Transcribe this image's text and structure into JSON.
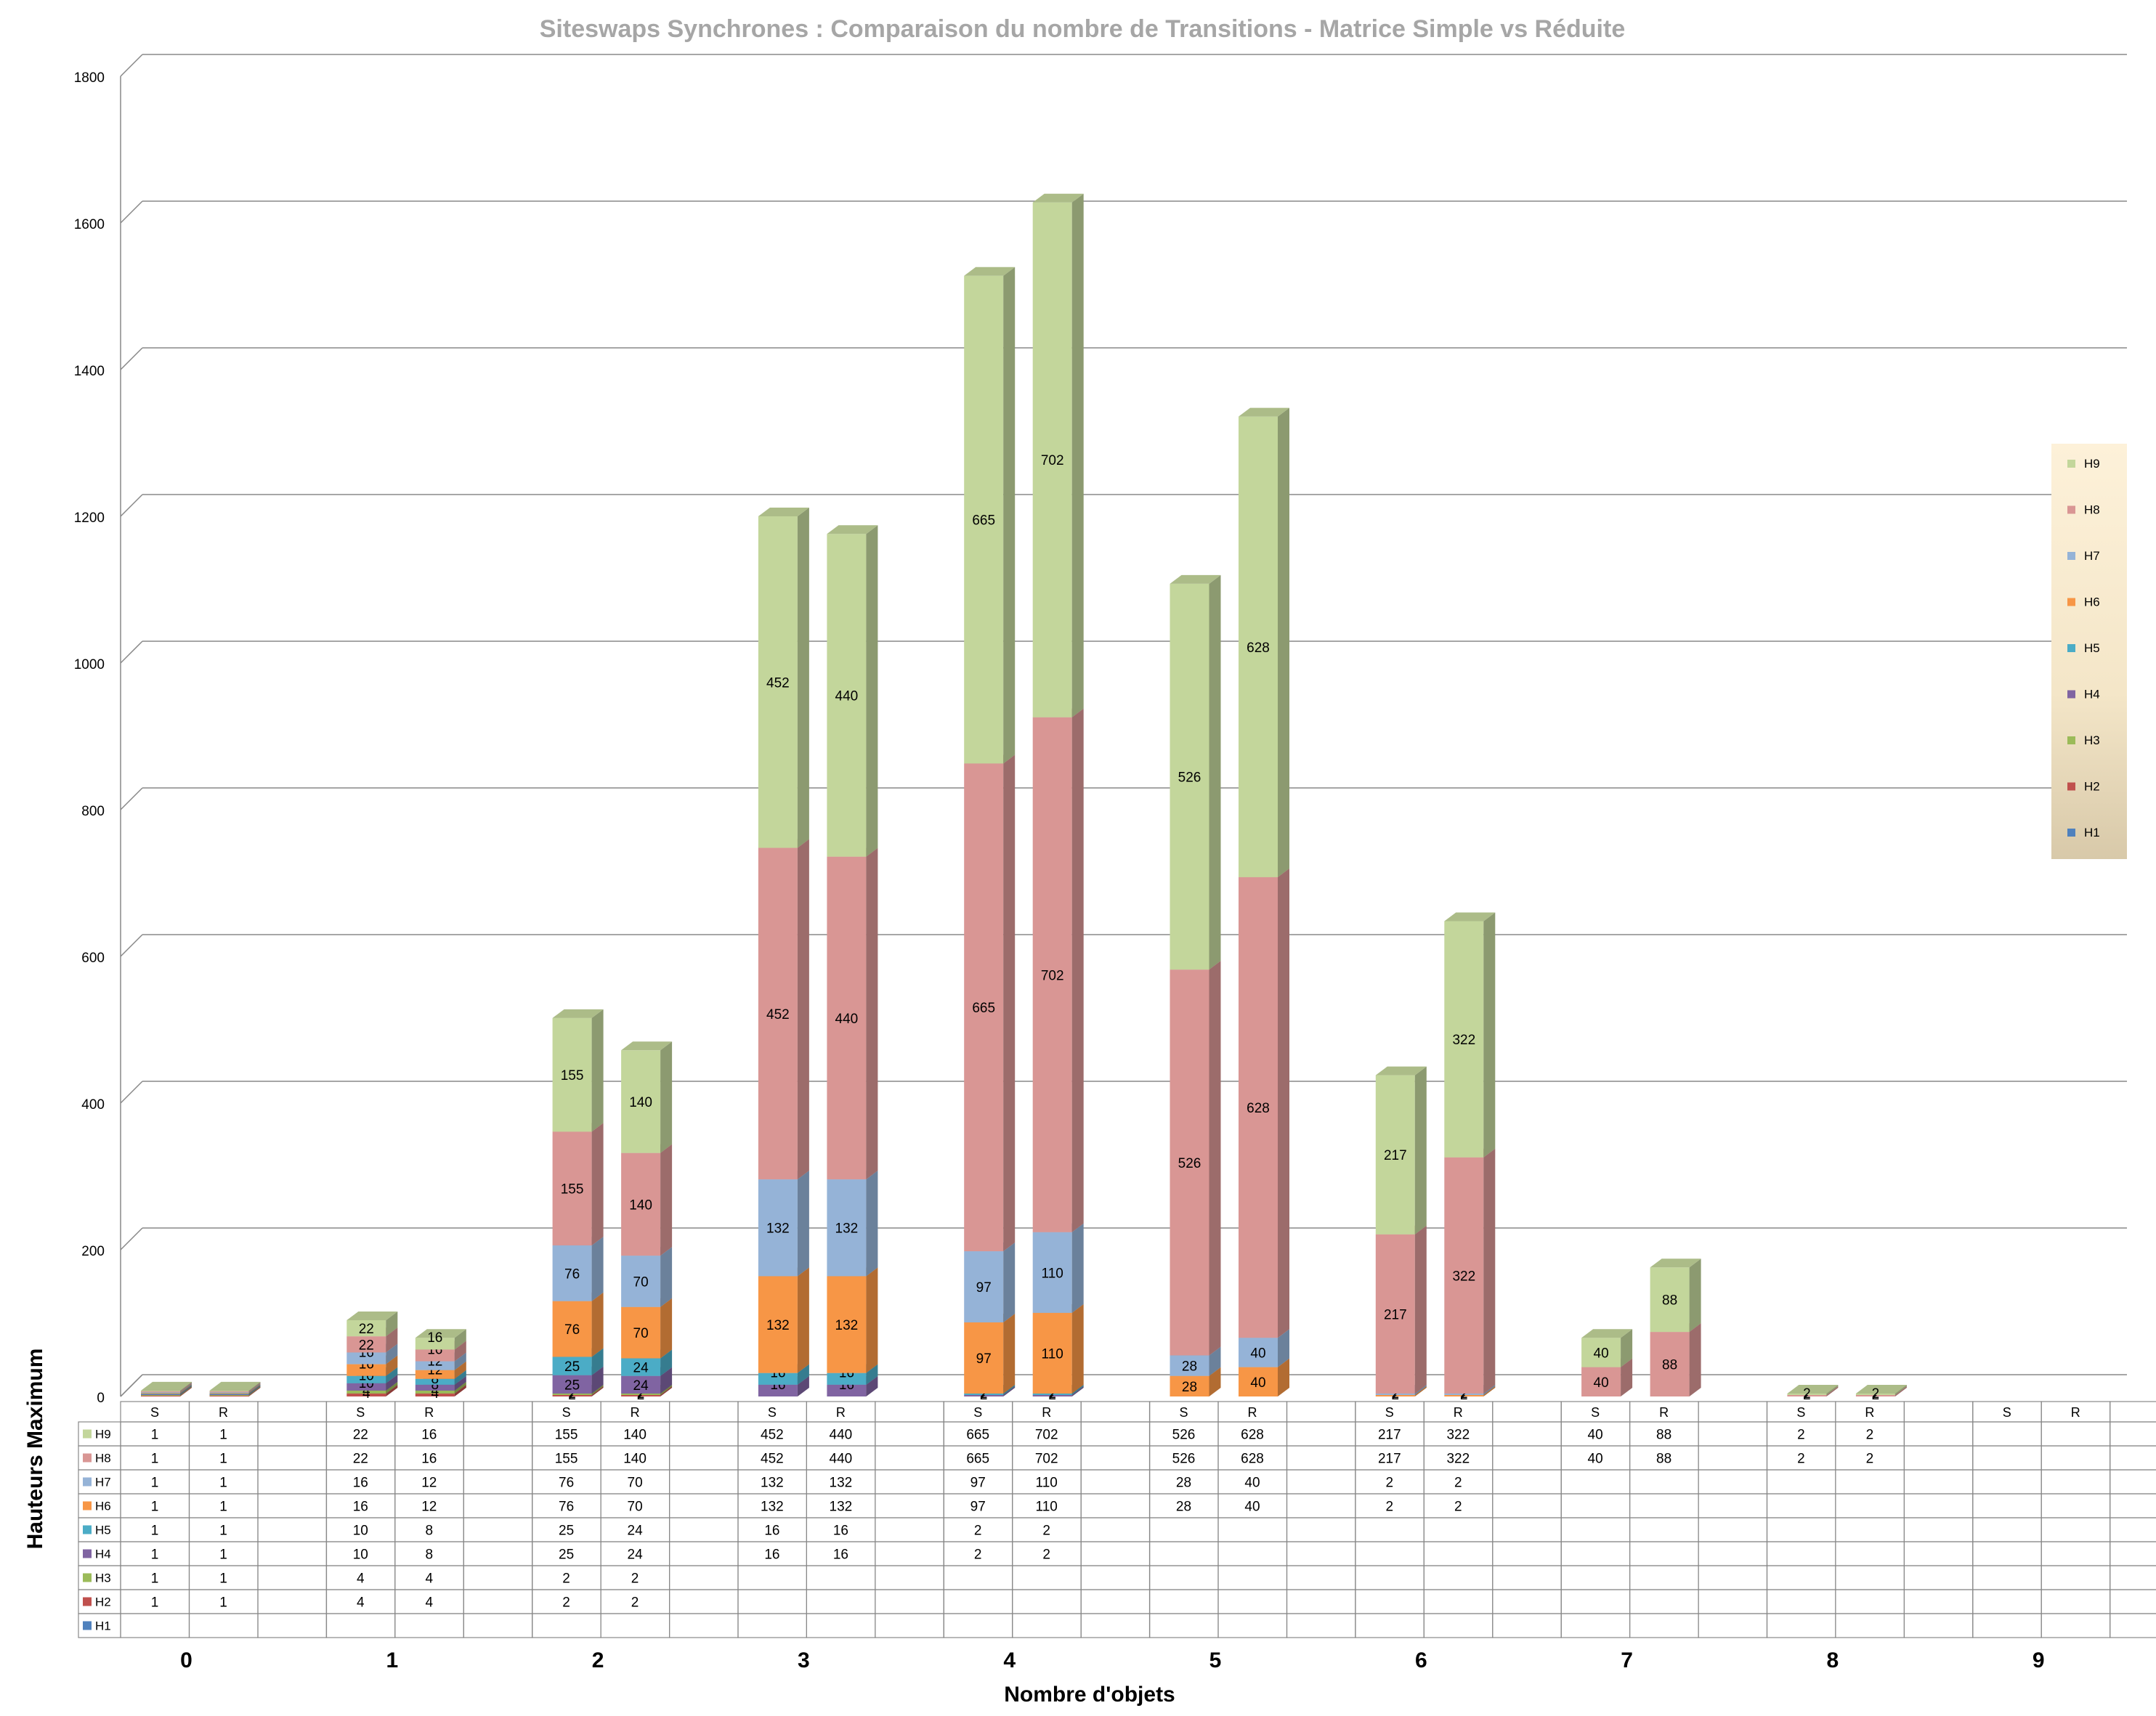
{
  "chart_data": {
    "type": "bar",
    "stacked": true,
    "title": "Siteswaps Synchrones : Comparaison du nombre de Transitions  -  Matrice Simple vs Réduite",
    "xlabel": "Nombre d'objets",
    "ylabel": "Hauteurs Maximum",
    "ylim": [
      0,
      1800
    ],
    "yticks": [
      "0",
      "200",
      "400",
      "600",
      "800",
      "1000",
      "1200",
      "1400",
      "1600",
      "1800"
    ],
    "grid": true,
    "legend_position": "right",
    "categories": [
      "0",
      "1",
      "2",
      "3",
      "4",
      "5",
      "6",
      "7",
      "8",
      "9"
    ],
    "subcategories": [
      "S",
      "R"
    ],
    "series": [
      {
        "name": "H1",
        "color": "#4f81bd",
        "values": [
          [
            null,
            null
          ],
          [
            null,
            null
          ],
          [
            null,
            null
          ],
          [
            null,
            null
          ],
          [
            null,
            null
          ],
          [
            null,
            null
          ],
          [
            null,
            null
          ],
          [
            null,
            null
          ],
          [
            null,
            null
          ],
          [
            null,
            null
          ]
        ]
      },
      {
        "name": "H2",
        "color": "#c0504d",
        "values": [
          [
            1,
            1
          ],
          [
            4,
            4
          ],
          [
            2,
            2
          ],
          [
            null,
            null
          ],
          [
            null,
            null
          ],
          [
            null,
            null
          ],
          [
            null,
            null
          ],
          [
            null,
            null
          ],
          [
            null,
            null
          ],
          [
            null,
            null
          ]
        ]
      },
      {
        "name": "H3",
        "color": "#9bbb59",
        "values": [
          [
            1,
            1
          ],
          [
            4,
            4
          ],
          [
            2,
            2
          ],
          [
            null,
            null
          ],
          [
            null,
            null
          ],
          [
            null,
            null
          ],
          [
            null,
            null
          ],
          [
            null,
            null
          ],
          [
            null,
            null
          ],
          [
            null,
            null
          ]
        ]
      },
      {
        "name": "H4",
        "color": "#8064a2",
        "values": [
          [
            1,
            1
          ],
          [
            10,
            8
          ],
          [
            25,
            24
          ],
          [
            16,
            16
          ],
          [
            2,
            2
          ],
          [
            null,
            null
          ],
          [
            null,
            null
          ],
          [
            null,
            null
          ],
          [
            null,
            null
          ],
          [
            null,
            null
          ]
        ]
      },
      {
        "name": "H5",
        "color": "#4bacc6",
        "values": [
          [
            1,
            1
          ],
          [
            10,
            8
          ],
          [
            25,
            24
          ],
          [
            16,
            16
          ],
          [
            2,
            2
          ],
          [
            null,
            null
          ],
          [
            null,
            null
          ],
          [
            null,
            null
          ],
          [
            null,
            null
          ],
          [
            null,
            null
          ]
        ]
      },
      {
        "name": "H6",
        "color": "#f79646",
        "values": [
          [
            1,
            1
          ],
          [
            16,
            12
          ],
          [
            76,
            70
          ],
          [
            132,
            132
          ],
          [
            97,
            110
          ],
          [
            28,
            40
          ],
          [
            2,
            2
          ],
          [
            null,
            null
          ],
          [
            null,
            null
          ],
          [
            null,
            null
          ]
        ]
      },
      {
        "name": "H7",
        "color": "#95b3d7",
        "values": [
          [
            1,
            1
          ],
          [
            16,
            12
          ],
          [
            76,
            70
          ],
          [
            132,
            132
          ],
          [
            97,
            110
          ],
          [
            28,
            40
          ],
          [
            2,
            2
          ],
          [
            null,
            null
          ],
          [
            null,
            null
          ],
          [
            null,
            null
          ]
        ]
      },
      {
        "name": "H8",
        "color": "#d99694",
        "values": [
          [
            1,
            1
          ],
          [
            22,
            16
          ],
          [
            155,
            140
          ],
          [
            452,
            440
          ],
          [
            665,
            702
          ],
          [
            526,
            628
          ],
          [
            217,
            322
          ],
          [
            40,
            88
          ],
          [
            2,
            2
          ],
          [
            null,
            null
          ]
        ]
      },
      {
        "name": "H9",
        "color": "#c3d69b",
        "values": [
          [
            1,
            1
          ],
          [
            22,
            16
          ],
          [
            155,
            140
          ],
          [
            452,
            440
          ],
          [
            665,
            702
          ],
          [
            526,
            628
          ],
          [
            217,
            322
          ],
          [
            40,
            88
          ],
          [
            2,
            2
          ],
          [
            null,
            null
          ]
        ]
      }
    ]
  }
}
